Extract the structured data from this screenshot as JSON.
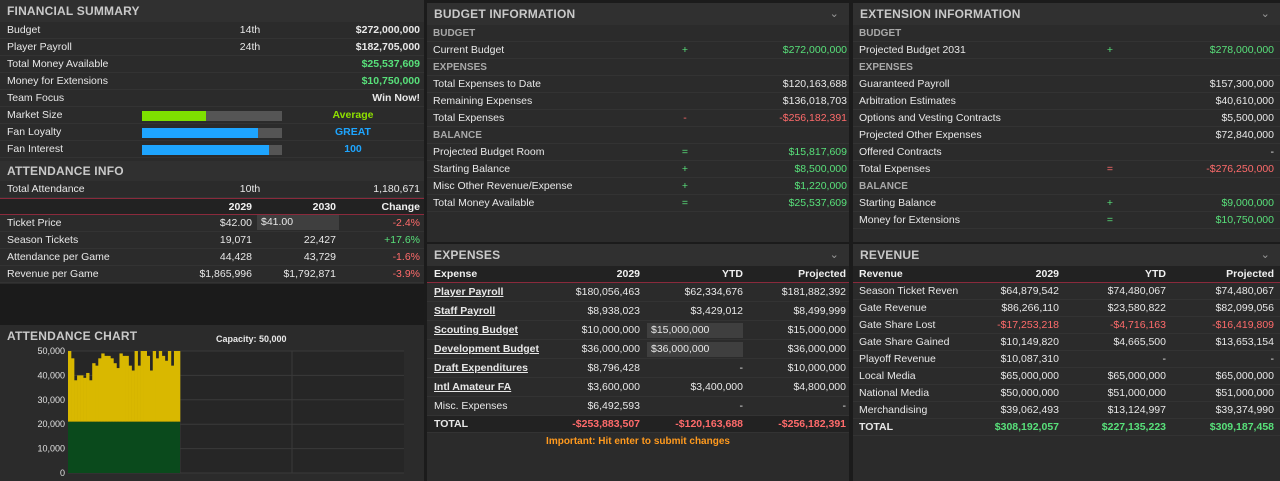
{
  "financial": {
    "title": "FINANCIAL SUMMARY",
    "rows": [
      {
        "label": "Budget",
        "rank": "14th",
        "value": "$272,000,000"
      },
      {
        "label": "Player Payroll",
        "rank": "24th",
        "value": "$182,705,000"
      },
      {
        "label": "Total Money Available",
        "rank": "",
        "value": "$25,537,609"
      },
      {
        "label": "Money for Extensions",
        "rank": "",
        "value": "$10,750,000"
      },
      {
        "label": "Team Focus",
        "rank": "",
        "value": "Win Now!"
      }
    ],
    "meters": [
      {
        "label": "Market Size",
        "value": "Average",
        "fill": 0.46,
        "color": "#7ee000"
      },
      {
        "label": "Fan Loyalty",
        "value": "GREAT",
        "fill": 0.83,
        "color": "#1ea5ff"
      },
      {
        "label": "Fan Interest",
        "value": "100",
        "fill": 0.91,
        "color": "#1ea5ff"
      }
    ]
  },
  "attendance": {
    "title": "ATTENDANCE INFO",
    "total_label": "Total Attendance",
    "total_rank": "10th",
    "total_value": "1,180,671",
    "headers": [
      "",
      "2029",
      "2030",
      "Change"
    ],
    "rows": [
      {
        "label": "Ticket Price",
        "y2029": "$42.00",
        "y2030": "$41.00",
        "change": "-2.4%"
      },
      {
        "label": "Season Tickets",
        "y2029": "19,071",
        "y2030": "22,427",
        "change": "+17.6%"
      },
      {
        "label": "Attendance per Game",
        "y2029": "44,428",
        "y2030": "43,729",
        "change": "-1.6%"
      },
      {
        "label": "Revenue per Game",
        "y2029": "$1,865,996",
        "y2030": "$1,792,871",
        "change": "-3.9%"
      }
    ]
  },
  "attendance_chart": {
    "title": "ATTENDANCE CHART",
    "capacity_label": "Capacity: 50,000"
  },
  "chart_data": {
    "type": "bar",
    "title": "",
    "xlabel": "",
    "ylabel": "",
    "ylim": [
      0,
      50000
    ],
    "yticks": [
      "50,000",
      "40,000",
      "30,000",
      "20,000",
      "10,000",
      "0"
    ],
    "baseline_fill": 21000,
    "values": [
      50000,
      47000,
      38000,
      40000,
      40000,
      39000,
      41000,
      38000,
      45000,
      44000,
      47000,
      49000,
      48000,
      48000,
      47000,
      45000,
      43000,
      49000,
      48000,
      48000,
      44000,
      42000,
      50000,
      44000,
      50000,
      50000,
      48000,
      42000,
      50000,
      47000,
      50000,
      48000,
      46000,
      50000,
      44000,
      50000,
      50000
    ],
    "colors": {
      "attendance": "#d9b800",
      "season_tickets": "#0a4a1c"
    }
  },
  "budget": {
    "title": "BUDGET INFORMATION",
    "sections": [
      {
        "name": "BUDGET",
        "rows": [
          {
            "label": "Current Budget",
            "sign": "+",
            "value": "$272,000,000",
            "cls": "green"
          }
        ]
      },
      {
        "name": "EXPENSES",
        "rows": [
          {
            "label": "Total Expenses to Date",
            "sign": "",
            "value": "$120,163,688",
            "cls": ""
          },
          {
            "label": "Remaining Expenses",
            "sign": "",
            "value": "$136,018,703",
            "cls": ""
          },
          {
            "label": "Total Expenses",
            "sign": "-",
            "value": "-$256,182,391",
            "cls": "red"
          }
        ]
      },
      {
        "name": "BALANCE",
        "rows": [
          {
            "label": "Projected Budget Room",
            "sign": "=",
            "value": "$15,817,609",
            "cls": "green"
          },
          {
            "label": "Starting Balance",
            "sign": "+",
            "value": "$8,500,000",
            "cls": "green"
          },
          {
            "label": "Misc Other Revenue/Expense",
            "sign": "+",
            "value": "$1,220,000",
            "cls": "green"
          },
          {
            "label": "Total Money Available",
            "sign": "=",
            "value": "$25,537,609",
            "cls": "green"
          }
        ]
      }
    ]
  },
  "extension": {
    "title": "EXTENSION INFORMATION",
    "sections": [
      {
        "name": "BUDGET",
        "rows": [
          {
            "label": "Projected Budget 2031",
            "sign": "+",
            "value": "$278,000,000",
            "cls": "green"
          }
        ]
      },
      {
        "name": "EXPENSES",
        "rows": [
          {
            "label": "Guaranteed Payroll",
            "sign": "",
            "value": "$157,300,000",
            "cls": ""
          },
          {
            "label": "Arbitration Estimates",
            "sign": "",
            "value": "$40,610,000",
            "cls": ""
          },
          {
            "label": "Options and Vesting Contracts",
            "sign": "",
            "value": "$5,500,000",
            "cls": ""
          },
          {
            "label": "Projected Other Expenses",
            "sign": "",
            "value": "$72,840,000",
            "cls": ""
          },
          {
            "label": "Offered Contracts",
            "sign": "",
            "value": "-",
            "cls": ""
          },
          {
            "label": "Total Expenses",
            "sign": "=",
            "value": "-$276,250,000",
            "cls": "red"
          }
        ]
      },
      {
        "name": "BALANCE",
        "rows": [
          {
            "label": "Starting Balance",
            "sign": "+",
            "value": "$9,000,000",
            "cls": "green"
          },
          {
            "label": "Money for Extensions",
            "sign": "=",
            "value": "$10,750,000",
            "cls": "green"
          }
        ]
      }
    ]
  },
  "expenses": {
    "title": "EXPENSES",
    "headers": [
      "Expense",
      "2029",
      "YTD",
      "Projected"
    ],
    "rows": [
      {
        "label": "Player Payroll",
        "link": true,
        "y2029": "$180,056,463",
        "ytd": "$62,334,676",
        "projected": "$181,882,392",
        "input": false
      },
      {
        "label": "Staff Payroll",
        "link": true,
        "y2029": "$8,938,023",
        "ytd": "$3,429,012",
        "projected": "$8,499,999",
        "input": false
      },
      {
        "label": "Scouting Budget",
        "link": true,
        "y2029": "$10,000,000",
        "ytd": "$15,000,000",
        "projected": "$15,000,000",
        "input": true
      },
      {
        "label": "Development Budget",
        "link": true,
        "y2029": "$36,000,000",
        "ytd": "$36,000,000",
        "projected": "$36,000,000",
        "input": true
      },
      {
        "label": "Draft Expenditures",
        "link": true,
        "y2029": "$8,796,428",
        "ytd": "-",
        "projected": "$10,000,000",
        "input": false
      },
      {
        "label": "Intl Amateur FA",
        "link": true,
        "y2029": "$3,600,000",
        "ytd": "$3,400,000",
        "projected": "$4,800,000",
        "input": false
      },
      {
        "label": "Misc. Expenses",
        "link": false,
        "y2029": "$6,492,593",
        "ytd": "-",
        "projected": "-",
        "input": false
      }
    ],
    "total": {
      "label": "TOTAL",
      "y2029": "-$253,883,507",
      "ytd": "-$120,163,688",
      "projected": "-$256,182,391"
    },
    "note": "Important: Hit enter to submit changes"
  },
  "revenue": {
    "title": "REVENUE",
    "headers": [
      "Revenue",
      "2029",
      "YTD",
      "Projected"
    ],
    "rows": [
      {
        "label": "Season Ticket Reven",
        "y2029": "$64,879,542",
        "ytd": "$74,480,067",
        "projected": "$74,480,067",
        "cls": ""
      },
      {
        "label": "Gate Revenue",
        "y2029": "$86,266,110",
        "ytd": "$23,580,822",
        "projected": "$82,099,056",
        "cls": ""
      },
      {
        "label": "Gate Share Lost",
        "y2029": "-$17,253,218",
        "ytd": "-$4,716,163",
        "projected": "-$16,419,809",
        "cls": "red"
      },
      {
        "label": "Gate Share Gained",
        "y2029": "$10,149,820",
        "ytd": "$4,665,500",
        "projected": "$13,653,154",
        "cls": ""
      },
      {
        "label": "Playoff Revenue",
        "y2029": "$10,087,310",
        "ytd": "-",
        "projected": "-",
        "cls": ""
      },
      {
        "label": "Local Media",
        "y2029": "$65,000,000",
        "ytd": "$65,000,000",
        "projected": "$65,000,000",
        "cls": ""
      },
      {
        "label": "National Media",
        "y2029": "$50,000,000",
        "ytd": "$51,000,000",
        "projected": "$51,000,000",
        "cls": ""
      },
      {
        "label": "Merchandising",
        "y2029": "$39,062,493",
        "ytd": "$13,124,997",
        "projected": "$39,374,990",
        "cls": ""
      }
    ],
    "total": {
      "label": "TOTAL",
      "y2029": "$308,192,057",
      "ytd": "$227,135,223",
      "projected": "$309,187,458"
    }
  }
}
